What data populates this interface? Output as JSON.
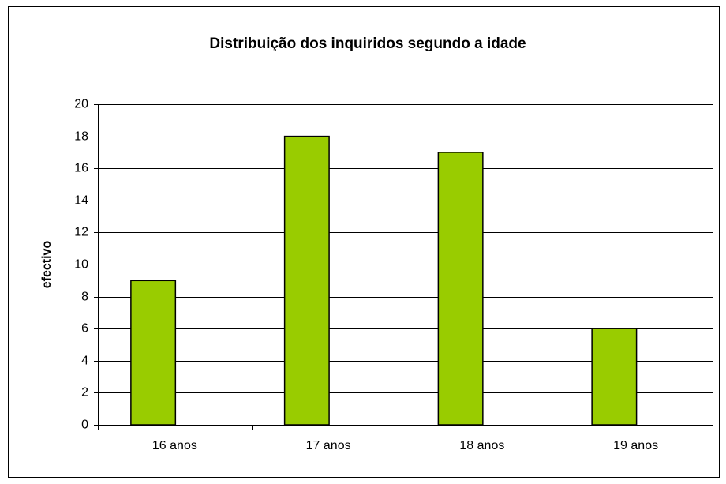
{
  "chart_data": {
    "type": "bar",
    "title": "Distribuição dos inquiridos segundo a idade",
    "y_label": "efectivo",
    "categories": [
      "16 anos",
      "17 anos",
      "18 anos",
      "19 anos"
    ],
    "values": [
      9,
      18,
      17,
      6
    ],
    "color": "#99cc00",
    "ylim": [
      0,
      20
    ],
    "yticks": [
      0,
      2,
      4,
      6,
      8,
      10,
      12,
      14,
      16,
      18,
      20
    ],
    "grid": true
  }
}
